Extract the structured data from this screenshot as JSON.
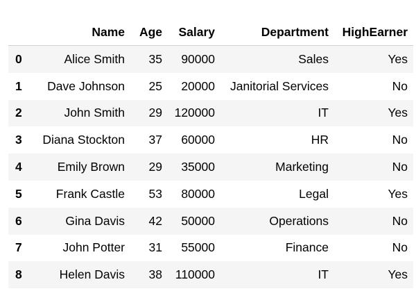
{
  "table": {
    "columns": [
      "",
      "Name",
      "Age",
      "Salary",
      "Department",
      "HighEarner"
    ],
    "rows": [
      {
        "index": "0",
        "name": "Alice Smith",
        "age": "35",
        "salary": "90000",
        "department": "Sales",
        "high_earner": "Yes"
      },
      {
        "index": "1",
        "name": "Dave Johnson",
        "age": "25",
        "salary": "20000",
        "department": "Janitorial Services",
        "high_earner": "No"
      },
      {
        "index": "2",
        "name": "John Smith",
        "age": "29",
        "salary": "120000",
        "department": "IT",
        "high_earner": "Yes"
      },
      {
        "index": "3",
        "name": "Diana Stockton",
        "age": "37",
        "salary": "60000",
        "department": "HR",
        "high_earner": "No"
      },
      {
        "index": "4",
        "name": "Emily Brown",
        "age": "29",
        "salary": "35000",
        "department": "Marketing",
        "high_earner": "No"
      },
      {
        "index": "5",
        "name": "Frank Castle",
        "age": "53",
        "salary": "80000",
        "department": "Legal",
        "high_earner": "Yes"
      },
      {
        "index": "6",
        "name": "Gina Davis",
        "age": "42",
        "salary": "50000",
        "department": "Operations",
        "high_earner": "No"
      },
      {
        "index": "7",
        "name": "John Potter",
        "age": "31",
        "salary": "55000",
        "department": "Finance",
        "high_earner": "No"
      },
      {
        "index": "8",
        "name": "Helen Davis",
        "age": "38",
        "salary": "110000",
        "department": "IT",
        "high_earner": "Yes"
      }
    ]
  },
  "colors": {
    "stripe": "#f5f5f5",
    "background": "#ffffff",
    "header_rule": "#cfcfcf"
  }
}
